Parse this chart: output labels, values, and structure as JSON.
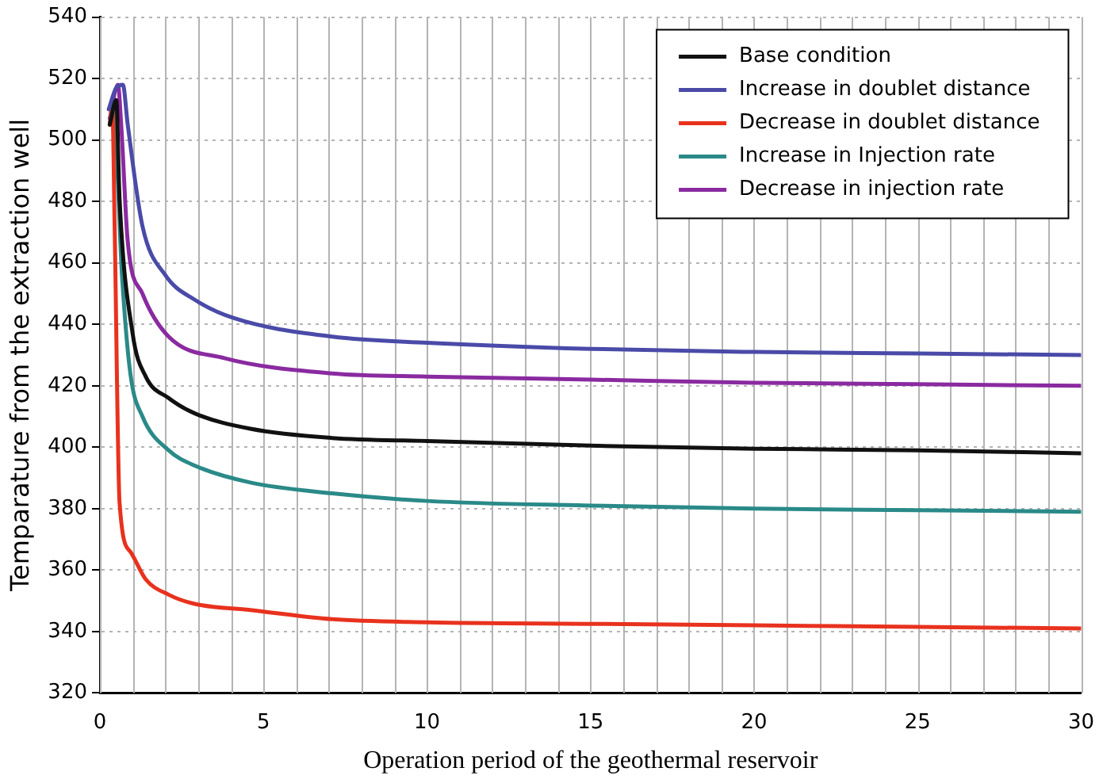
{
  "chart_data": {
    "type": "line",
    "xlabel": "Operation period of the geothermal reservoir",
    "ylabel": "Temparature from the extraction well",
    "xlim": [
      0,
      30
    ],
    "xticks": [
      0,
      5,
      10,
      15,
      20,
      25,
      30
    ],
    "ylim": [
      320,
      540
    ],
    "yticks": [
      320,
      340,
      360,
      380,
      400,
      420,
      440,
      460,
      480,
      500,
      520,
      540
    ],
    "grid": true,
    "legend": "top right",
    "marker": "none",
    "line_style": "solid",
    "series": [
      {
        "name": "Base condition",
        "color": "#111111",
        "x": [
          0.3,
          0.5,
          0.6,
          1.0,
          1.4,
          2.1,
          2.9,
          4.6,
          7.1,
          10,
          15,
          20,
          25,
          30
        ],
        "values": [
          505,
          513,
          481,
          437,
          423,
          416,
          411,
          406,
          403,
          402,
          400.5,
          399.5,
          399,
          398
        ]
      },
      {
        "name": "Increase in doublet distance",
        "color": "#4a4aa8",
        "x": [
          0.27,
          0.5,
          0.7,
          0.85,
          1.3,
          2.0,
          2.9,
          4.1,
          7.1,
          10,
          15,
          20,
          25,
          30
        ],
        "values": [
          510,
          517,
          518,
          505,
          472,
          456,
          448,
          442,
          436,
          434,
          432,
          431,
          430.5,
          430
        ]
      },
      {
        "name": "Decrease in doublet distance",
        "color": "#e8321e",
        "x": [
          0.3,
          0.38,
          0.45,
          0.6,
          0.93,
          1.4,
          2.1,
          2.9,
          4.6,
          7.1,
          10,
          15,
          20,
          25,
          30
        ],
        "values": [
          505,
          510,
          472,
          382,
          366,
          357,
          352,
          349,
          347,
          344,
          343,
          342.5,
          342,
          341.5,
          341
        ]
      },
      {
        "name": "Increase in Injection rate",
        "color": "#2a8a88",
        "x": [
          0.3,
          0.4,
          0.68,
          0.93,
          1.3,
          2.1,
          2.9,
          4.6,
          7.1,
          10,
          15,
          20,
          25,
          30
        ],
        "values": [
          505,
          512,
          455,
          424,
          410,
          399,
          394,
          388.5,
          385,
          382.5,
          381,
          380,
          379.5,
          379
        ]
      },
      {
        "name": "Decrease in injection rate",
        "color": "#8a2aa0",
        "x": [
          0.3,
          0.55,
          0.65,
          0.85,
          1.3,
          2.1,
          3.8,
          7.1,
          10,
          15,
          20,
          25,
          30
        ],
        "values": [
          507,
          518,
          505,
          467,
          450,
          436,
          429,
          424,
          423,
          422,
          421,
          420.5,
          420
        ]
      }
    ]
  }
}
